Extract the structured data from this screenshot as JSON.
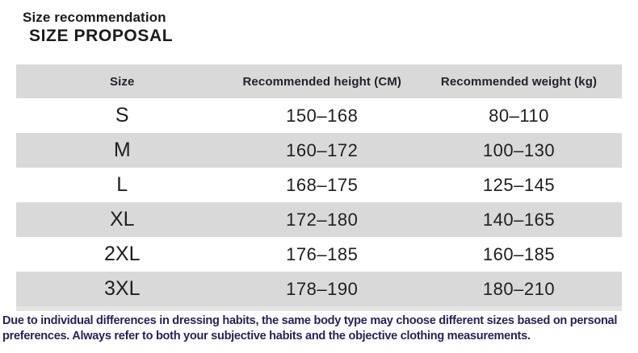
{
  "page": {
    "title_small": "Size recommendation",
    "title_large": "SIZE PROPOSAL"
  },
  "table": {
    "columns": [
      "Size",
      "Recommended height (CM)",
      "Recommended weight (kg)"
    ],
    "rows": [
      {
        "size": "S",
        "height": "150–168",
        "weight": "80–110"
      },
      {
        "size": "M",
        "height": "160–172",
        "weight": "100–130"
      },
      {
        "size": "L",
        "height": "168–175",
        "weight": "125–145"
      },
      {
        "size": "XL",
        "height": "172–180",
        "weight": "140–165"
      },
      {
        "size": "2XL",
        "height": "176–185",
        "weight": "160–185"
      },
      {
        "size": "3XL",
        "height": "178–190",
        "weight": "180–210"
      }
    ]
  },
  "footer": {
    "lines": [
      "Due to individual differences in dressing habits, the same body type may choose different sizes based on personal",
      "preferences. Always refer to both your subjective habits and the objective clothing measurements."
    ]
  },
  "colors": {
    "row_shade": "#d9d9d9",
    "footer_text": "#28235d",
    "body_text": "#1f1f1f"
  }
}
